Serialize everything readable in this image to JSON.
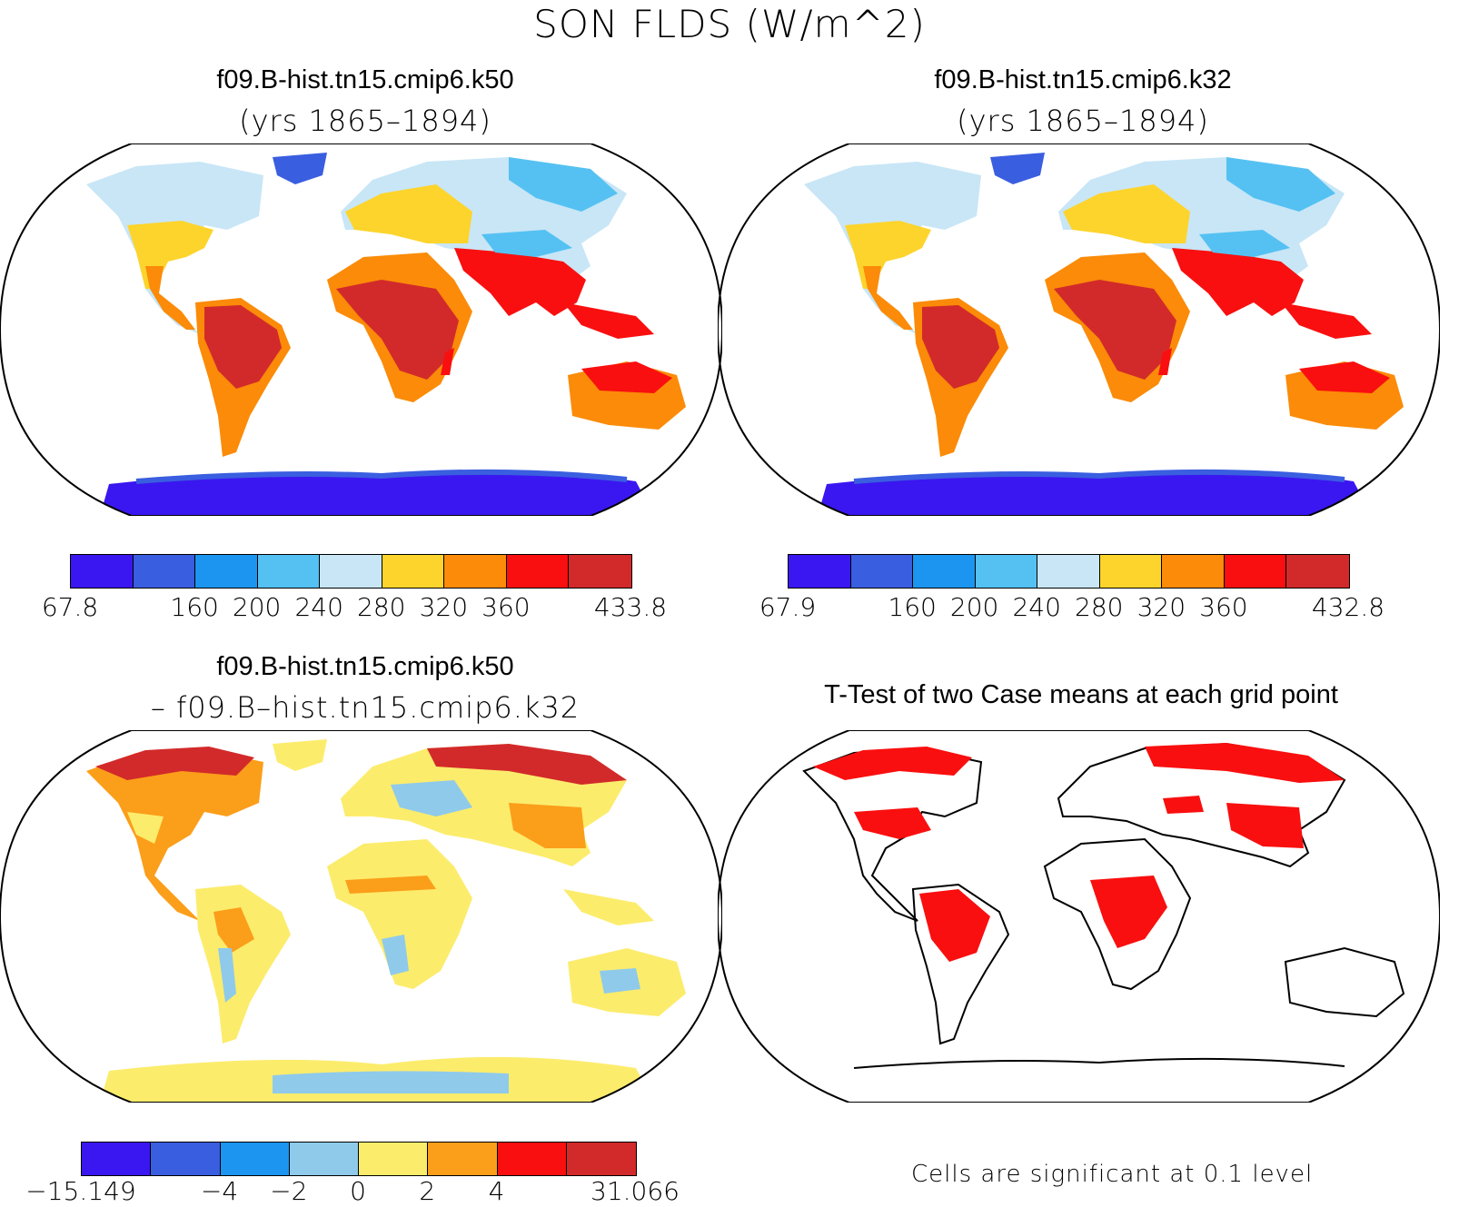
{
  "main_title": "SON FLDS (W/m^2)",
  "panels": {
    "top_left": {
      "title": "f09.B-hist.tn15.cmip6.k50",
      "subtitle": "(yrs 1865–1894)"
    },
    "top_right": {
      "title": "f09.B-hist.tn15.cmip6.k32",
      "subtitle": "(yrs 1865–1894)"
    },
    "bottom_left": {
      "title": "f09.B-hist.tn15.cmip6.k50",
      "subtitle": "– f09.B–hist.tn15.cmip6.k32"
    },
    "bottom_right": {
      "title": "T-Test of two Case means at each grid point",
      "note": "Cells are significant at 0.1 level"
    }
  },
  "colorbars": {
    "top_left": {
      "colors": [
        "#3a17f0",
        "#3a5ee0",
        "#1b95f0",
        "#55c1f2",
        "#c8e6f6",
        "#fdd42c",
        "#fb8b08",
        "#f90f0f",
        "#d22a2a"
      ],
      "labels": [
        "67.8",
        "",
        "160",
        "200",
        "240",
        "280",
        "320",
        "360",
        "",
        "433.8"
      ]
    },
    "top_right": {
      "colors": [
        "#3a17f0",
        "#3a5ee0",
        "#1b95f0",
        "#55c1f2",
        "#c8e6f6",
        "#fdd42c",
        "#fb8b08",
        "#f90f0f",
        "#d22a2a"
      ],
      "labels": [
        "67.9",
        "",
        "160",
        "200",
        "240",
        "280",
        "320",
        "360",
        "",
        "432.8"
      ]
    },
    "bottom_left": {
      "colors": [
        "#3a17f0",
        "#3a5ee0",
        "#1b95f0",
        "#8fcaea",
        "#fcec6c",
        "#fb9e1a",
        "#f90f0f",
        "#d22a2a"
      ],
      "labels": [
        "−15.149",
        "",
        "−4",
        "−2",
        "0",
        "2",
        "4",
        "",
        "31.066"
      ]
    }
  }
}
